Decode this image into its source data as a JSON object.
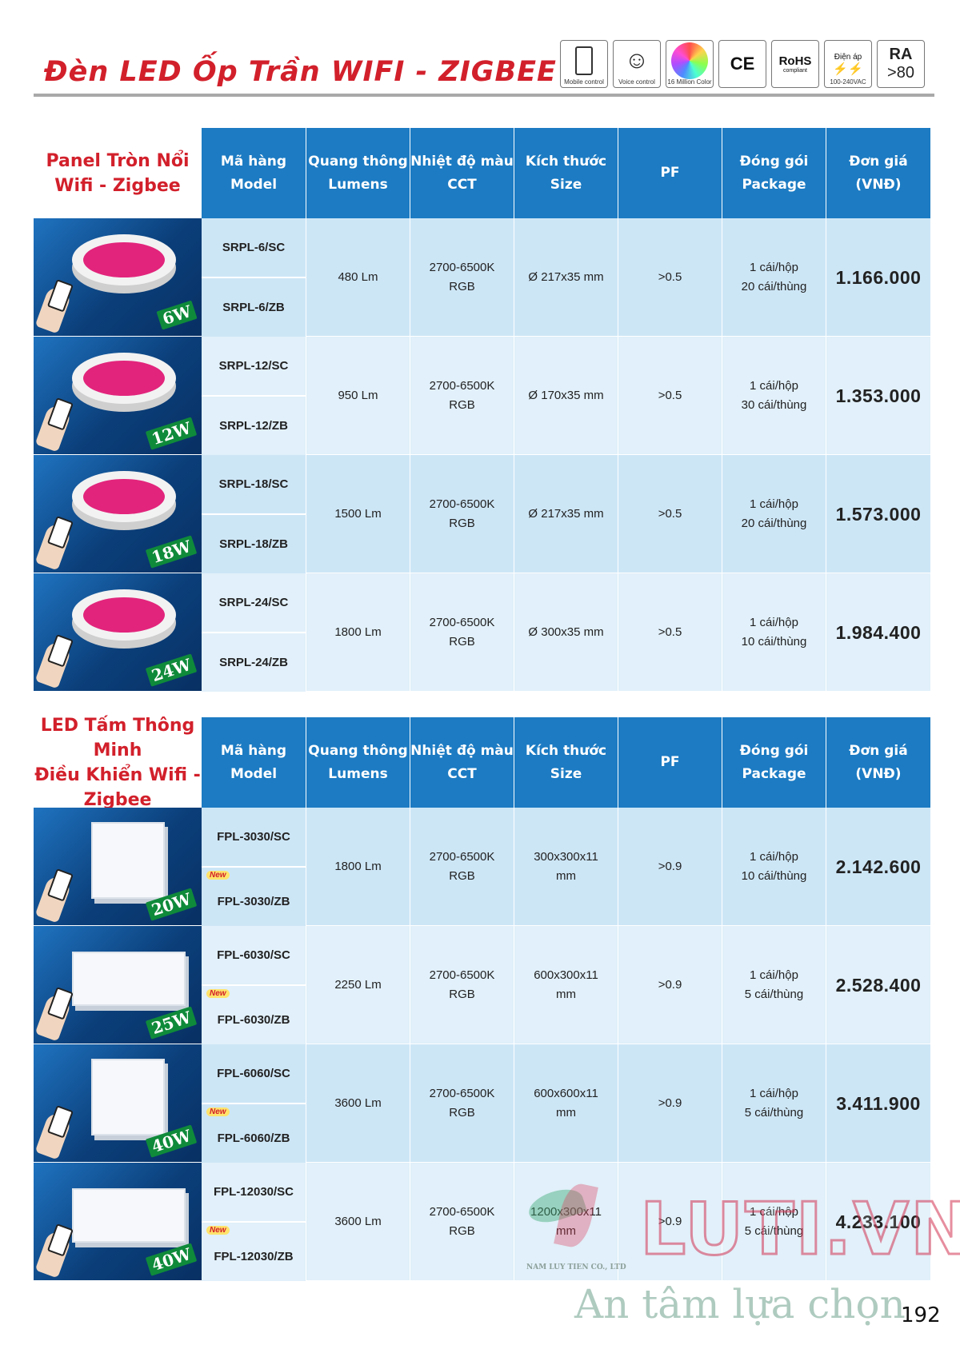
{
  "header": {
    "title": "Đèn LED Ốp Trần WIFI - ZIGBEE",
    "certs": [
      {
        "icon": "mobile-control-icon",
        "caption": "Mobile control"
      },
      {
        "icon": "voice-control-icon",
        "caption": "Voice control"
      },
      {
        "icon": "color-wheel-icon",
        "caption": "16 Million Color"
      },
      {
        "icon": "ce-mark-icon",
        "text": "CE"
      },
      {
        "icon": "rohs-icon",
        "text": "RoHS",
        "sub": "compliant"
      },
      {
        "icon": "voltage-icon",
        "top": "Điện áp",
        "caption": "100-240VAC"
      },
      {
        "icon": "ra-icon",
        "top": "RA",
        "bottom": ">80"
      }
    ]
  },
  "columns": [
    {
      "vi": "Mã hàng",
      "en": "Model"
    },
    {
      "vi": "Quang thông",
      "en": "Lumens"
    },
    {
      "vi": "Nhiệt độ màu",
      "en": "CCT"
    },
    {
      "vi": "Kích thước",
      "en": "Size"
    },
    {
      "vi": "PF",
      "en": ""
    },
    {
      "vi": "Đóng gói",
      "en": "Package"
    },
    {
      "vi": "Đơn giá",
      "en": "(VNĐ)"
    }
  ],
  "section1": {
    "label": [
      "Panel Tròn Nổi",
      "Wifi - Zigbee"
    ],
    "rows": [
      {
        "watt": "6W",
        "models": [
          "SRPL-6/SC",
          "SRPL-6/ZB"
        ],
        "lumens": "480 Lm",
        "cct": [
          "2700-6500K",
          "RGB"
        ],
        "size": [
          "Ø 217x35 mm"
        ],
        "pf": ">0.5",
        "package": [
          "1 cái/hộp",
          "20 cái/thùng"
        ],
        "price": "1.166.000"
      },
      {
        "watt": "12W",
        "models": [
          "SRPL-12/SC",
          "SRPL-12/ZB"
        ],
        "lumens": "950 Lm",
        "cct": [
          "2700-6500K",
          "RGB"
        ],
        "size": [
          "Ø 170x35 mm"
        ],
        "pf": ">0.5",
        "package": [
          "1 cái/hộp",
          "30 cái/thùng"
        ],
        "price": "1.353.000"
      },
      {
        "watt": "18W",
        "models": [
          "SRPL-18/SC",
          "SRPL-18/ZB"
        ],
        "lumens": "1500 Lm",
        "cct": [
          "2700-6500K",
          "RGB"
        ],
        "size": [
          "Ø 217x35 mm"
        ],
        "pf": ">0.5",
        "package": [
          "1 cái/hộp",
          "20 cái/thùng"
        ],
        "price": "1.573.000"
      },
      {
        "watt": "24W",
        "models": [
          "SRPL-24/SC",
          "SRPL-24/ZB"
        ],
        "lumens": "1800 Lm",
        "cct": [
          "2700-6500K",
          "RGB"
        ],
        "size": [
          "Ø 300x35 mm"
        ],
        "pf": ">0.5",
        "package": [
          "1 cái/hộp",
          "10 cái/thùng"
        ],
        "price": "1.984.400"
      }
    ]
  },
  "section2": {
    "label": [
      "LED Tấm Thông Minh",
      "Điều Khiển Wifi -",
      "Zigbee"
    ],
    "new_tag": "New",
    "rows": [
      {
        "watt": "20W",
        "models": [
          "FPL-3030/SC",
          "FPL-3030/ZB"
        ],
        "lumens": "1800 Lm",
        "cct": [
          "2700-6500K",
          "RGB"
        ],
        "size": [
          "300x300x11",
          "mm"
        ],
        "pf": ">0.9",
        "package": [
          "1 cái/hộp",
          "10 cái/thùng"
        ],
        "price": "2.142.600"
      },
      {
        "watt": "25W",
        "models": [
          "FPL-6030/SC",
          "FPL-6030/ZB"
        ],
        "lumens": "2250 Lm",
        "cct": [
          "2700-6500K",
          "RGB"
        ],
        "size": [
          "600x300x11",
          "mm"
        ],
        "pf": ">0.9",
        "package": [
          "1 cái/hộp",
          "5 cái/thùng"
        ],
        "price": "2.528.400"
      },
      {
        "watt": "40W",
        "models": [
          "FPL-6060/SC",
          "FPL-6060/ZB"
        ],
        "lumens": "3600 Lm",
        "cct": [
          "2700-6500K",
          "RGB"
        ],
        "size": [
          "600x600x11",
          "mm"
        ],
        "pf": ">0.9",
        "package": [
          "1 cái/hộp",
          "5 cái/thùng"
        ],
        "price": "3.411.900"
      },
      {
        "watt": "40W",
        "models": [
          "FPL-12030/SC",
          "FPL-12030/ZB"
        ],
        "lumens": "3600 Lm",
        "cct": [
          "2700-6500K",
          "RGB"
        ],
        "size": [
          "1200x300x11",
          "mm"
        ],
        "pf": ">0.9",
        "package": [
          "1 cái/hộp",
          "5 cái/thùng"
        ],
        "price": "4.233.100"
      }
    ]
  },
  "watermark": {
    "company": "NAM LUY TIEN CO., LTD",
    "brand": "LUTI.VN",
    "slogan": "An tâm lựa chọn"
  },
  "page_number": "192",
  "colors": {
    "accent_red": "#d2202b",
    "header_blue": "#1c7bc3",
    "row_a": "#cde6f6",
    "row_b": "#e1f0fa",
    "watt_green": "#0f8a3a"
  }
}
